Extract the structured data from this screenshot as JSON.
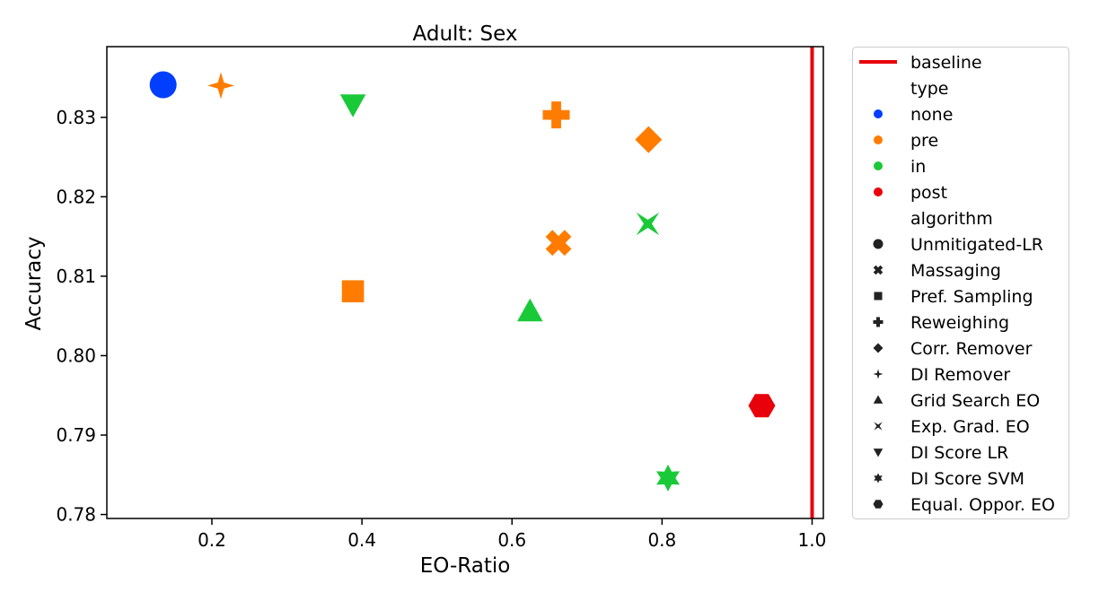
{
  "chart_data": {
    "type": "scatter",
    "title": "Adult: Sex",
    "xlabel": "EO-Ratio",
    "ylabel": "Accuracy",
    "xlim": [
      0.06,
      1.015
    ],
    "ylim": [
      0.7795,
      0.8389
    ],
    "xticks": [
      0.2,
      0.4,
      0.6,
      0.8,
      1.0
    ],
    "xtick_labels": [
      "0.2",
      "0.4",
      "0.6",
      "0.8",
      "1.0"
    ],
    "yticks": [
      0.78,
      0.79,
      0.8,
      0.81,
      0.82,
      0.83
    ],
    "ytick_labels": [
      "0.78",
      "0.79",
      "0.80",
      "0.81",
      "0.82",
      "0.83"
    ],
    "grid": false,
    "legend_position": "outside-right",
    "baseline": {
      "label": "baseline",
      "x": 1.0,
      "color": "#e8000b"
    },
    "type_header": "type",
    "algorithm_header": "algorithm",
    "types": [
      {
        "name": "none",
        "color": "#023eff"
      },
      {
        "name": "pre",
        "color": "#ff7c00"
      },
      {
        "name": "in",
        "color": "#1ac938"
      },
      {
        "name": "post",
        "color": "#e8000b"
      }
    ],
    "algorithms": [
      {
        "name": "Unmitigated-LR",
        "marker": "circle"
      },
      {
        "name": "Massaging",
        "marker": "x"
      },
      {
        "name": "Pref. Sampling",
        "marker": "square"
      },
      {
        "name": "Reweighing",
        "marker": "plus"
      },
      {
        "name": "Corr. Remover",
        "marker": "diamond"
      },
      {
        "name": "DI Remover",
        "marker": "star4"
      },
      {
        "name": "Grid Search EO",
        "marker": "triangle-up"
      },
      {
        "name": "Exp. Grad. EO",
        "marker": "hourglass"
      },
      {
        "name": "DI Score LR",
        "marker": "triangle-down"
      },
      {
        "name": "DI Score SVM",
        "marker": "star6"
      },
      {
        "name": "Equal. Oppor. EO",
        "marker": "hexagon"
      }
    ],
    "points": [
      {
        "x": 0.135,
        "y": 0.8341,
        "type": "none",
        "algorithm": "Unmitigated-LR"
      },
      {
        "x": 0.212,
        "y": 0.834,
        "type": "pre",
        "algorithm": "DI Remover"
      },
      {
        "x": 0.388,
        "y": 0.8317,
        "type": "in",
        "algorithm": "DI Score LR"
      },
      {
        "x": 0.659,
        "y": 0.8303,
        "type": "pre",
        "algorithm": "Reweighing"
      },
      {
        "x": 0.782,
        "y": 0.8272,
        "type": "pre",
        "algorithm": "Corr. Remover"
      },
      {
        "x": 0.781,
        "y": 0.8166,
        "type": "in",
        "algorithm": "Exp. Grad. EO"
      },
      {
        "x": 0.662,
        "y": 0.8142,
        "type": "pre",
        "algorithm": "Massaging"
      },
      {
        "x": 0.388,
        "y": 0.8081,
        "type": "pre",
        "algorithm": "Pref. Sampling"
      },
      {
        "x": 0.624,
        "y": 0.8055,
        "type": "in",
        "algorithm": "Grid Search EO"
      },
      {
        "x": 0.933,
        "y": 0.7937,
        "type": "post",
        "algorithm": "Equal. Oppor. EO"
      },
      {
        "x": 0.808,
        "y": 0.7846,
        "type": "in",
        "algorithm": "DI Score SVM"
      }
    ]
  }
}
